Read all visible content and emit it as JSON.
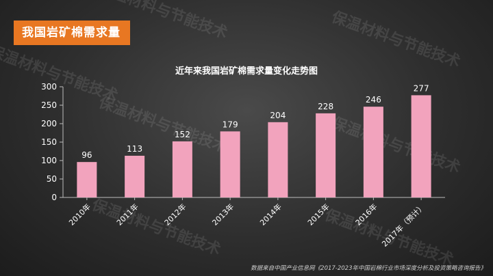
{
  "header": {
    "badge": "我国岩矿棉需求量"
  },
  "watermark": "保温材料与节能技术",
  "source": "数据来自中国产业信息网《2017-2023年中国岩棉行业市场深度分析及投资策略咨询报告》",
  "chart_data": {
    "type": "bar",
    "title": "近年来我国岩矿棉需求量变化走势图",
    "categories": [
      "2010年",
      "2011年",
      "2012年",
      "2013年",
      "2014年",
      "2015年",
      "2016年",
      "2017年（预计）"
    ],
    "values": [
      96,
      113,
      152,
      179,
      204,
      228,
      246,
      277
    ],
    "ylim": [
      0,
      300
    ],
    "yticks": [
      0,
      50,
      100,
      150,
      200,
      250,
      300
    ],
    "bar_color": "#f2a3bd",
    "grid": false,
    "legend": "none",
    "data_labels": true
  }
}
